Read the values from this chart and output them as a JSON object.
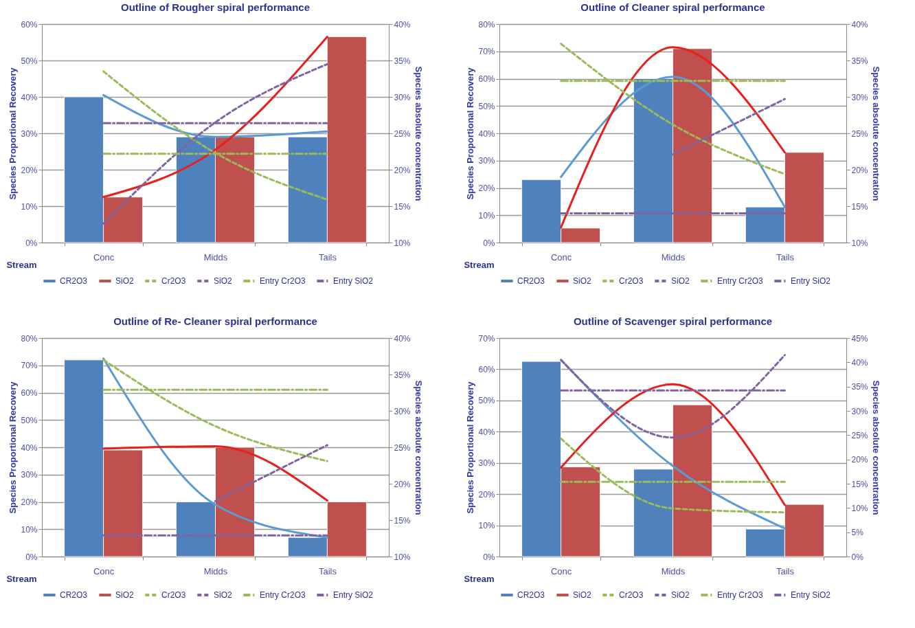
{
  "chart_data": [
    {
      "type": "bar",
      "title": "Outline of Rougher spiral performance",
      "xlabel": "Stream",
      "ylabel": "Species Proportional Recovery",
      "y2label": "Species absolute concentration",
      "categories": [
        "Conc",
        "Midds",
        "Tails"
      ],
      "ylim": [
        0,
        60
      ],
      "yticks": [
        {
          "value": 0,
          "label": "0%"
        },
        {
          "value": 10,
          "label": "10%"
        },
        {
          "value": 20,
          "label": "20%"
        },
        {
          "value": 30,
          "label": "30%"
        },
        {
          "value": 40,
          "label": "40%"
        },
        {
          "value": 50,
          "label": "50%"
        },
        {
          "value": 60,
          "label": "60%"
        }
      ],
      "y2lim": [
        10,
        40
      ],
      "y2ticks": [
        {
          "value": 10,
          "label": "10%"
        },
        {
          "value": 15,
          "label": "15%"
        },
        {
          "value": 20,
          "label": "20%"
        },
        {
          "value": 25,
          "label": "25%"
        },
        {
          "value": 30,
          "label": "30%"
        },
        {
          "value": 35,
          "label": "35%"
        },
        {
          "value": 40,
          "label": "40%"
        }
      ],
      "grid": "y",
      "legend": "bottom",
      "series": [
        {
          "name": "CR2O3",
          "color": "#4f81bd",
          "values": [
            40,
            29,
            29
          ]
        },
        {
          "name": "SiO2",
          "color": "#c0504d",
          "values": [
            12.5,
            29,
            56.5
          ]
        },
        {
          "name": "Cr2O3",
          "type": "line",
          "color": "#9bbb59",
          "axis": "y2",
          "line_style": "dashed",
          "values": [
            33.5,
            22.3,
            15.9
          ]
        },
        {
          "name": "SiO2",
          "type": "line",
          "color": "#8064a2",
          "axis": "y2",
          "line_style": "dashed",
          "values": [
            12.6,
            26.5,
            34.5
          ]
        },
        {
          "name": "Entry Cr2O3",
          "type": "line",
          "color": "#9bbb59",
          "axis": "y2",
          "line_style": "dashdot",
          "values": [
            22.2,
            22.2,
            22.2
          ]
        },
        {
          "name": "Entry SiO2",
          "type": "line",
          "color": "#8064a2",
          "axis": "y2",
          "line_style": "dashdot",
          "values": [
            26.4,
            26.4,
            26.4
          ]
        },
        {
          "type": "line",
          "color": "#5b9bd5",
          "line_style": "solid",
          "values": [
            40.5,
            29,
            30.5
          ]
        },
        {
          "type": "line",
          "color": "#e8201c",
          "line_style": "solid",
          "values": [
            12.5,
            25.5,
            56.5
          ]
        }
      ]
    },
    {
      "type": "bar",
      "title": "Outline of Cleaner spiral performance",
      "xlabel": "Stream",
      "ylabel": "Species Proportional Recovery",
      "y2label": "Species absolute concentration",
      "categories": [
        "Conc",
        "Midds",
        "Tails"
      ],
      "ylim": [
        0,
        80
      ],
      "yticks": [
        {
          "value": 0,
          "label": "0%"
        },
        {
          "value": 10,
          "label": "10%"
        },
        {
          "value": 20,
          "label": "20%"
        },
        {
          "value": 30,
          "label": "30%"
        },
        {
          "value": 40,
          "label": "40%"
        },
        {
          "value": 50,
          "label": "50%"
        },
        {
          "value": 60,
          "label": "60%"
        },
        {
          "value": 70,
          "label": "70%"
        },
        {
          "value": 80,
          "label": "80%"
        }
      ],
      "y2lim": [
        10,
        40
      ],
      "y2ticks": [
        {
          "value": 10,
          "label": "10%"
        },
        {
          "value": 15,
          "label": "15%"
        },
        {
          "value": 20,
          "label": "20%"
        },
        {
          "value": 25,
          "label": "25%"
        },
        {
          "value": 30,
          "label": "30%"
        },
        {
          "value": 35,
          "label": "35%"
        },
        {
          "value": 40,
          "label": "40%"
        }
      ],
      "grid": "y",
      "legend": "bottom",
      "series": [
        {
          "name": "CR2O3",
          "color": "#4f81bd",
          "values": [
            23,
            60,
            13
          ]
        },
        {
          "name": "SiO2",
          "color": "#c0504d",
          "values": [
            5.3,
            71,
            33
          ]
        },
        {
          "name": "Cr2O3",
          "type": "line",
          "color": "#9bbb59",
          "axis": "y2",
          "line_style": "dashed",
          "values": [
            37.3,
            26.2,
            19.4
          ]
        },
        {
          "name": "SiO2",
          "type": "line",
          "color": "#8064a2",
          "axis": "y2",
          "line_style": "dashed",
          "values": [
            null,
            22.1,
            29.7
          ]
        },
        {
          "name": "Entry Cr2O3",
          "type": "line",
          "color": "#9bbb59",
          "axis": "y2",
          "line_style": "dashdot",
          "values": [
            32.2,
            32.2,
            32.2
          ]
        },
        {
          "name": "Entry SiO2",
          "type": "line",
          "color": "#8064a2",
          "axis": "y2",
          "line_style": "dashdot",
          "values": [
            14,
            14,
            14
          ]
        },
        {
          "type": "line",
          "color": "#5b9bd5",
          "line_style": "solid",
          "values": [
            24,
            60.7,
            13
          ]
        },
        {
          "type": "line",
          "color": "#e8201c",
          "line_style": "solid",
          "values": [
            5.5,
            71.5,
            33
          ]
        }
      ]
    },
    {
      "type": "bar",
      "title": "Outline of Re- Cleaner spiral performance",
      "xlabel": "Stream",
      "ylabel": "Species Proportional Recovery",
      "y2label": "Species absolute concentration",
      "categories": [
        "Conc",
        "Midds",
        "Tails"
      ],
      "ylim": [
        0,
        80
      ],
      "yticks": [
        {
          "value": 0,
          "label": "0%"
        },
        {
          "value": 10,
          "label": "10%"
        },
        {
          "value": 20,
          "label": "20%"
        },
        {
          "value": 30,
          "label": "30%"
        },
        {
          "value": 40,
          "label": "40%"
        },
        {
          "value": 50,
          "label": "50%"
        },
        {
          "value": 60,
          "label": "60%"
        },
        {
          "value": 70,
          "label": "70%"
        },
        {
          "value": 80,
          "label": "80%"
        }
      ],
      "y2lim": [
        10,
        40
      ],
      "y2ticks": [
        {
          "value": 10,
          "label": "10%"
        },
        {
          "value": 15,
          "label": "15%"
        },
        {
          "value": 20,
          "label": "20%"
        },
        {
          "value": 25,
          "label": "25%"
        },
        {
          "value": 30,
          "label": "30%"
        },
        {
          "value": 35,
          "label": "35%"
        },
        {
          "value": 40,
          "label": "40%"
        }
      ],
      "grid": "y",
      "legend": "bottom",
      "series": [
        {
          "name": "CR2O3",
          "color": "#4f81bd",
          "values": [
            72,
            20,
            7
          ]
        },
        {
          "name": "SiO2",
          "color": "#c0504d",
          "values": [
            39,
            40,
            20
          ]
        },
        {
          "name": "Cr2O3",
          "type": "line",
          "color": "#9bbb59",
          "axis": "y2",
          "line_style": "dashed",
          "values": [
            37,
            27.9,
            23.1
          ]
        },
        {
          "name": "SiO2",
          "type": "line",
          "color": "#8064a2",
          "axis": "y2",
          "line_style": "dashed",
          "values": [
            null,
            17.6,
            25.3
          ]
        },
        {
          "name": "Entry Cr2O3",
          "type": "line",
          "color": "#9bbb59",
          "axis": "y2",
          "line_style": "dashdot",
          "values": [
            32.9,
            32.9,
            32.9
          ]
        },
        {
          "name": "Entry SiO2",
          "type": "line",
          "color": "#8064a2",
          "axis": "y2",
          "line_style": "dashdot",
          "values": [
            12.9,
            12.9,
            12.9
          ]
        },
        {
          "type": "line",
          "color": "#5b9bd5",
          "line_style": "solid",
          "values": [
            72.5,
            19,
            7
          ]
        },
        {
          "type": "line",
          "color": "#e8201c",
          "line_style": "solid",
          "values": [
            39.5,
            40.4,
            20.5
          ]
        }
      ]
    },
    {
      "type": "bar",
      "title": "Outline of Scavenger spiral performance",
      "xlabel": "Stream",
      "ylabel": "Species Proportional Recovery",
      "y2label": "Species absolute concentration",
      "categories": [
        "Conc",
        "Midds",
        "Tails"
      ],
      "ylim": [
        0,
        70
      ],
      "yticks": [
        {
          "value": 0,
          "label": "0%"
        },
        {
          "value": 10,
          "label": "10%"
        },
        {
          "value": 20,
          "label": "20%"
        },
        {
          "value": 30,
          "label": "30%"
        },
        {
          "value": 40,
          "label": "40%"
        },
        {
          "value": 50,
          "label": "50%"
        },
        {
          "value": 60,
          "label": "60%"
        },
        {
          "value": 70,
          "label": "70%"
        }
      ],
      "y2lim": [
        0,
        45
      ],
      "y2ticks": [
        {
          "value": 0,
          "label": "0%"
        },
        {
          "value": 5,
          "label": "5%"
        },
        {
          "value": 10,
          "label": "10%"
        },
        {
          "value": 15,
          "label": "15%"
        },
        {
          "value": 20,
          "label": "20%"
        },
        {
          "value": 25,
          "label": "25%"
        },
        {
          "value": 30,
          "label": "30%"
        },
        {
          "value": 35,
          "label": "35%"
        },
        {
          "value": 40,
          "label": "40%"
        },
        {
          "value": 45,
          "label": "45%"
        }
      ],
      "grid": "y",
      "legend": "bottom",
      "series": [
        {
          "name": "CR2O3",
          "color": "#4f81bd",
          "values": [
            62.5,
            28,
            8.8
          ]
        },
        {
          "name": "SiO2",
          "color": "#c0504d",
          "values": [
            28.7,
            48.6,
            16.7
          ]
        },
        {
          "name": "Cr2O3",
          "type": "line",
          "color": "#9bbb59",
          "axis": "y2",
          "line_style": "dashed",
          "values": [
            24.3,
            9.9,
            9.1
          ]
        },
        {
          "name": "SiO2",
          "type": "line",
          "color": "#8064a2",
          "axis": "y2",
          "line_style": "dashed",
          "values": [
            40.5,
            24.5,
            41.5
          ]
        },
        {
          "name": "Entry Cr2O3",
          "type": "line",
          "color": "#9bbb59",
          "axis": "y2",
          "line_style": "dashdot",
          "values": [
            15.4,
            15.4,
            15.4
          ]
        },
        {
          "name": "Entry SiO2",
          "type": "line",
          "color": "#8064a2",
          "axis": "y2",
          "line_style": "dashdot",
          "values": [
            34.2,
            34.2,
            34.2
          ]
        },
        {
          "type": "line",
          "color": "#5b9bd5",
          "line_style": "solid",
          "values": [
            63,
            29,
            9
          ]
        },
        {
          "type": "line",
          "color": "#e8201c",
          "line_style": "solid",
          "values": [
            28.5,
            55.2,
            16.5
          ]
        }
      ]
    }
  ]
}
